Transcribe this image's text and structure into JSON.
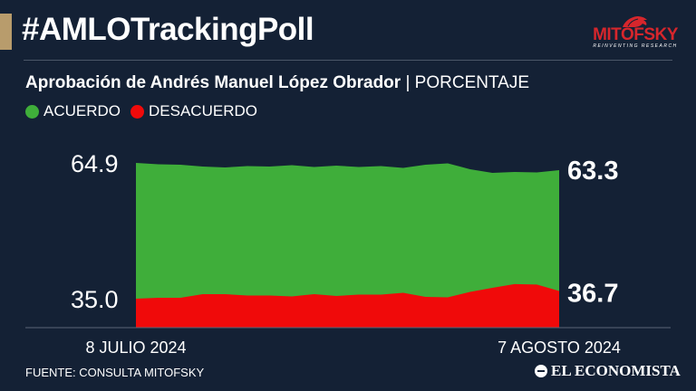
{
  "header": {
    "hashtag": "#AMLOTrackingPoll",
    "brand_name": "MITOFSKY",
    "brand_tagline": "REINVENTING RESEARCH"
  },
  "subtitle": {
    "bold": "Aprobación de Andrés Manuel López Obrador",
    "separator": "|",
    "light": "PORCENTAJE"
  },
  "legend": [
    {
      "label": "ACUERDO",
      "color": "#3fae3a"
    },
    {
      "label": "DESACUERDO",
      "color": "#f00a0a"
    }
  ],
  "chart_data": {
    "type": "area",
    "x_start_label": "8 JULIO 2024",
    "x_end_label": "7 AGOSTO 2024",
    "y_top_label": "64.9",
    "y_bottom_label": "35.0",
    "ylim": [
      35.0,
      64.9
    ],
    "series": [
      {
        "name": "ACUERDO",
        "color": "#3fae3a",
        "values": [
          64.9,
          64.6,
          64.5,
          64.1,
          63.9,
          64.2,
          64.1,
          64.4,
          64.0,
          64.3,
          64.0,
          64.2,
          63.8,
          64.5,
          64.8,
          63.5,
          62.7,
          62.9,
          62.8,
          63.3
        ]
      },
      {
        "name": "DESACUERDO",
        "color": "#f00a0a",
        "values": [
          35.0,
          35.2,
          35.2,
          36.0,
          36.0,
          35.7,
          35.7,
          35.5,
          36.0,
          35.6,
          35.9,
          35.9,
          36.3,
          35.4,
          35.3,
          36.5,
          37.4,
          38.2,
          38.1,
          36.7
        ]
      }
    ],
    "end_labels": [
      "63.3",
      "36.7"
    ]
  },
  "footer": {
    "source": "FUENTE: CONSULTA MITOFSKY",
    "publisher": "EL ECONOMISTA"
  }
}
